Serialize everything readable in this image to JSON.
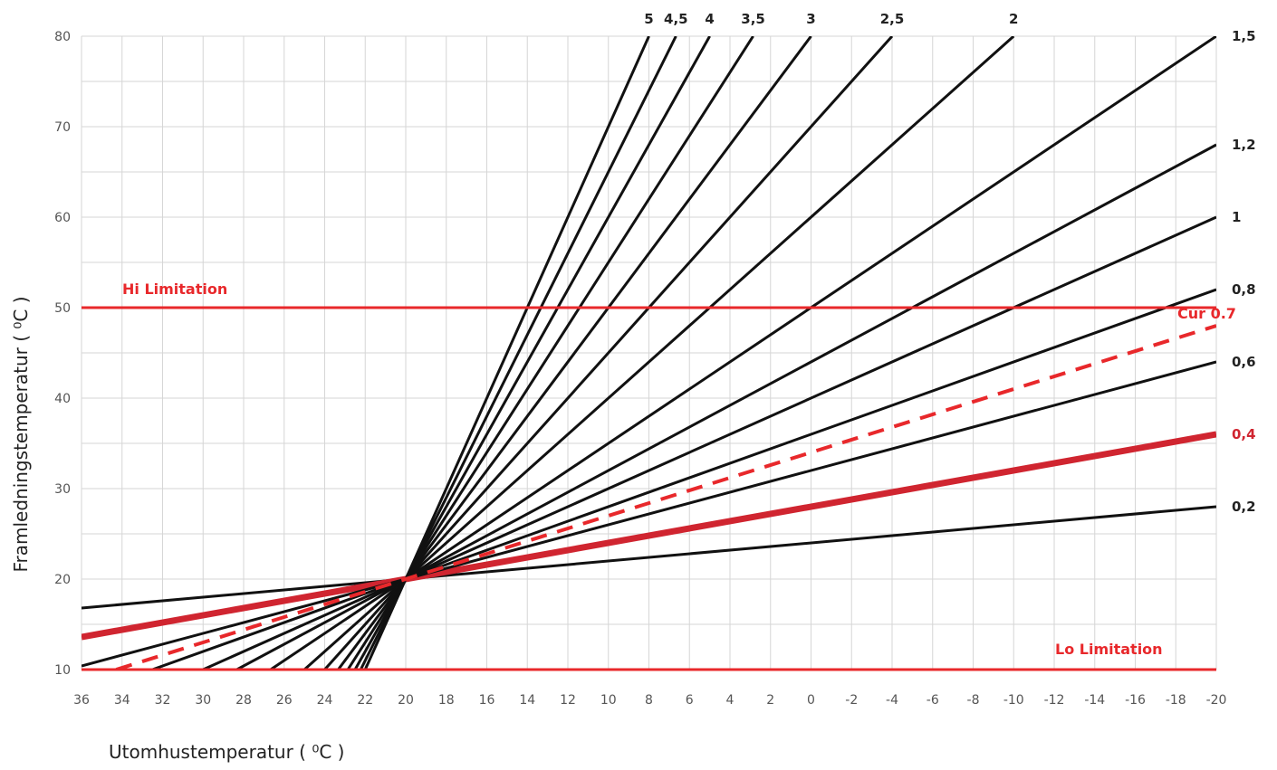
{
  "chart_data": {
    "type": "line",
    "title": "",
    "xlabel": "Utomhustemperatur ( ⁰C )",
    "ylabel": "Framledningstemperatur ( ⁰C )",
    "x_ticks": [
      "36",
      "34",
      "32",
      "30",
      "28",
      "26",
      "24",
      "22",
      "20",
      "18",
      "16",
      "14",
      "12",
      "10",
      "8",
      "6",
      "4",
      "2",
      "0",
      "-2",
      "-4",
      "-6",
      "-8",
      "-10",
      "-12",
      "-14",
      "-16",
      "-18",
      "-20"
    ],
    "y_ticks": [
      "10",
      "20",
      "30",
      "40",
      "50",
      "60",
      "70",
      "80"
    ],
    "xlim": [
      36,
      -20
    ],
    "ylim": [
      10,
      80
    ],
    "grid": true,
    "pivot": [
      20,
      20
    ],
    "curves": [
      {
        "label": "0,2",
        "slope": 0.2
      },
      {
        "label": "0,4",
        "slope": 0.4,
        "highlight": true
      },
      {
        "label": "0,6",
        "slope": 0.6
      },
      {
        "label": "0,8",
        "slope": 0.8
      },
      {
        "label": "1",
        "slope": 1.0
      },
      {
        "label": "1,2",
        "slope": 1.2
      },
      {
        "label": "1,5",
        "slope": 1.5
      },
      {
        "label": "2",
        "slope": 2.0
      },
      {
        "label": "2,5",
        "slope": 2.5
      },
      {
        "label": "3",
        "slope": 3.0
      },
      {
        "label": "3,5",
        "slope": 3.5
      },
      {
        "label": "4",
        "slope": 4.0
      },
      {
        "label": "4,5",
        "slope": 4.5
      },
      {
        "label": "5",
        "slope": 5.0
      }
    ],
    "current_curve": {
      "label": "Cur 0.7",
      "slope": 0.7,
      "style": "dashed"
    },
    "limits": [
      {
        "name": "Hi Limitation",
        "y": 50
      },
      {
        "name": "Lo Limitation",
        "y": 10
      }
    ],
    "colors": {
      "curve": "#111111",
      "limit": "#e8282b",
      "highlight": "#d02530",
      "grid": "#d6d6d6"
    }
  }
}
